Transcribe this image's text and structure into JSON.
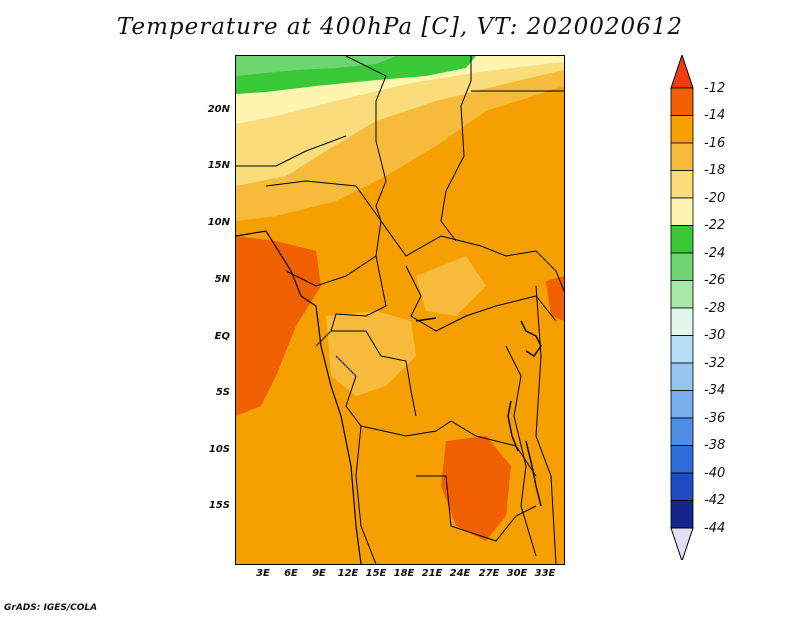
{
  "title": "Temperature at 400hPa [C], VT: 2020020612",
  "credit": "GrADS: IGES/COLA",
  "map": {
    "lat_labels": [
      "20N",
      "15N",
      "10N",
      "5N",
      "EQ",
      "5S",
      "10S",
      "15S"
    ],
    "lat_values": [
      20,
      15,
      10,
      5,
      0,
      -5,
      -10,
      -15
    ],
    "lon_labels": [
      "3E",
      "6E",
      "9E",
      "12E",
      "15E",
      "18E",
      "21E",
      "24E",
      "27E",
      "30E",
      "33E"
    ],
    "lon_values": [
      3,
      6,
      9,
      12,
      15,
      18,
      21,
      24,
      27,
      30,
      33
    ],
    "lon_range": [
      0,
      35
    ],
    "lat_range": [
      -20,
      25
    ],
    "variable": "Temperature",
    "level": "400hPa",
    "units": "C"
  },
  "colorbar": {
    "labels": [
      "-12",
      "-14",
      "-16",
      "-18",
      "-20",
      "-22",
      "-24",
      "-26",
      "-28",
      "-30",
      "-32",
      "-34",
      "-36",
      "-38",
      "-40",
      "-42",
      "-44"
    ],
    "colors": [
      "#dd3a00",
      "#f06000",
      "#f5a000",
      "#f7bb3c",
      "#f9dd7a",
      "#fdf5b0",
      "#38c838",
      "#6ed66e",
      "#a8e8a8",
      "#e2f6ee",
      "#b6dcf6",
      "#96c6f0",
      "#76aeee",
      "#4e8ee6",
      "#2e6edc",
      "#1e4cc4",
      "#14268e",
      "#0a0870"
    ],
    "end_colors": {
      "top": "#f03c10",
      "bottom": "#e2e0f6"
    }
  }
}
